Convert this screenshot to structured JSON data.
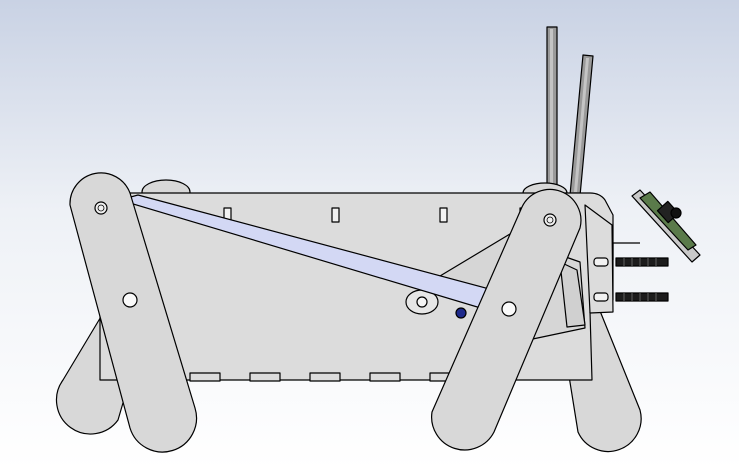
{
  "viewport": {
    "background_top_color": "#c9d2e4",
    "background_mid_color": "#eef1f6",
    "background_bottom_color": "#ffffff"
  },
  "model": {
    "part_fill_color": "#d8d8d8",
    "part_edge_color": "#000000",
    "link_bar_color": "#d3d8f4",
    "rod_color": "#8f8f8f",
    "bolt_color": "#202020",
    "pcb_color": "#5a7a4a",
    "fastener_color": "#1e2a8c"
  }
}
